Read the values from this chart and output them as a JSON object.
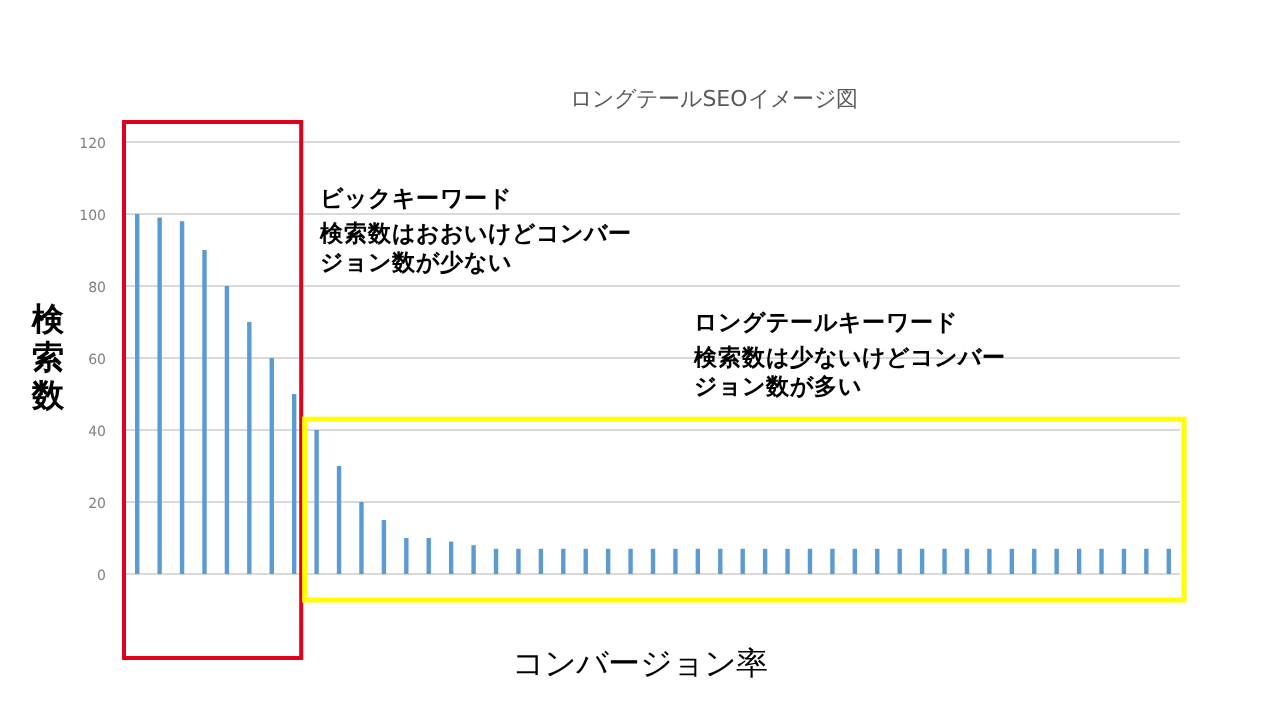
{
  "chart_data": {
    "type": "bar",
    "title": "ロングテールSEOイメージ図",
    "xlabel": "コンバージョン率",
    "ylabel": "検索数",
    "categories": [
      null,
      null,
      null,
      null,
      null,
      null,
      null,
      null,
      null,
      null,
      null,
      null,
      null,
      null,
      null,
      null,
      null,
      null,
      null,
      null,
      null,
      null,
      null,
      null,
      null,
      null,
      null,
      null,
      null,
      null,
      null,
      null,
      null,
      null,
      null,
      null,
      null,
      null,
      null,
      null,
      null,
      null,
      null,
      null,
      null,
      null,
      null
    ],
    "values": [
      100,
      99,
      98,
      90,
      80,
      70,
      60,
      50,
      40,
      30,
      20,
      15,
      10,
      10,
      9,
      8,
      7,
      7,
      7,
      7,
      7,
      7,
      7,
      7,
      7,
      7,
      7,
      7,
      7,
      7,
      7,
      7,
      7,
      7,
      7,
      7,
      7,
      7,
      7,
      7,
      7,
      7,
      7,
      7,
      7,
      7,
      7
    ],
    "color": "#5b9bd5",
    "ylim": [
      0,
      120
    ],
    "yticks": [
      0,
      20,
      40,
      60,
      80,
      100,
      120
    ],
    "grid": "y",
    "annotations": [
      "ビックキーワード",
      "検索数はおおいけどコンバージョン数が少ない",
      "ロングテールキーワード",
      "検索数は少ないけどコンバージョン数が多い"
    ]
  }
}
